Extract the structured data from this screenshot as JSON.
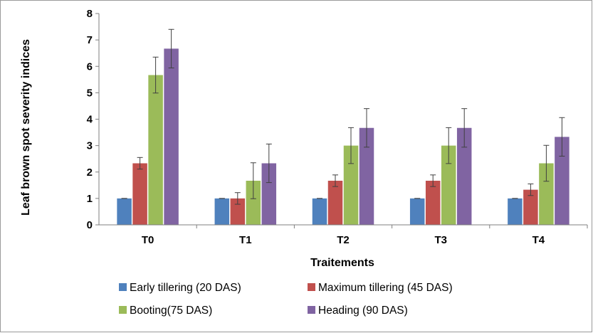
{
  "chart_data": {
    "type": "bar",
    "title": "",
    "xlabel": "Traitements",
    "ylabel": "Leaf brown spot severity indices",
    "ylim": [
      0,
      8
    ],
    "yticks": [
      0,
      1,
      2,
      3,
      4,
      5,
      6,
      7,
      8
    ],
    "grid": false,
    "legend_position": "bottom",
    "categories": [
      "T0",
      "T1",
      "T2",
      "T3",
      "T4"
    ],
    "series": [
      {
        "name": "Early tillering (20 DAS)",
        "color": "#4f81bd",
        "values": [
          1,
          1,
          1,
          1,
          1
        ],
        "errors": [
          0,
          0,
          0,
          0,
          0
        ]
      },
      {
        "name": "Maximum tillering (45 DAS)",
        "color": "#c0504d",
        "values": [
          2.33,
          1,
          1.67,
          1.67,
          1.33
        ],
        "errors": [
          0.22,
          0.22,
          0.22,
          0.22,
          0.22
        ]
      },
      {
        "name": "Booting(75 DAS)",
        "color": "#9bbb59",
        "values": [
          5.67,
          1.67,
          3,
          3,
          2.33
        ],
        "errors": [
          0.68,
          0.68,
          0.68,
          0.68,
          0.68
        ]
      },
      {
        "name": "Heading (90 DAS)",
        "color": "#8064a2",
        "values": [
          6.67,
          2.33,
          3.67,
          3.67,
          3.33
        ],
        "errors": [
          0.73,
          0.73,
          0.73,
          0.73,
          0.73
        ]
      }
    ]
  }
}
